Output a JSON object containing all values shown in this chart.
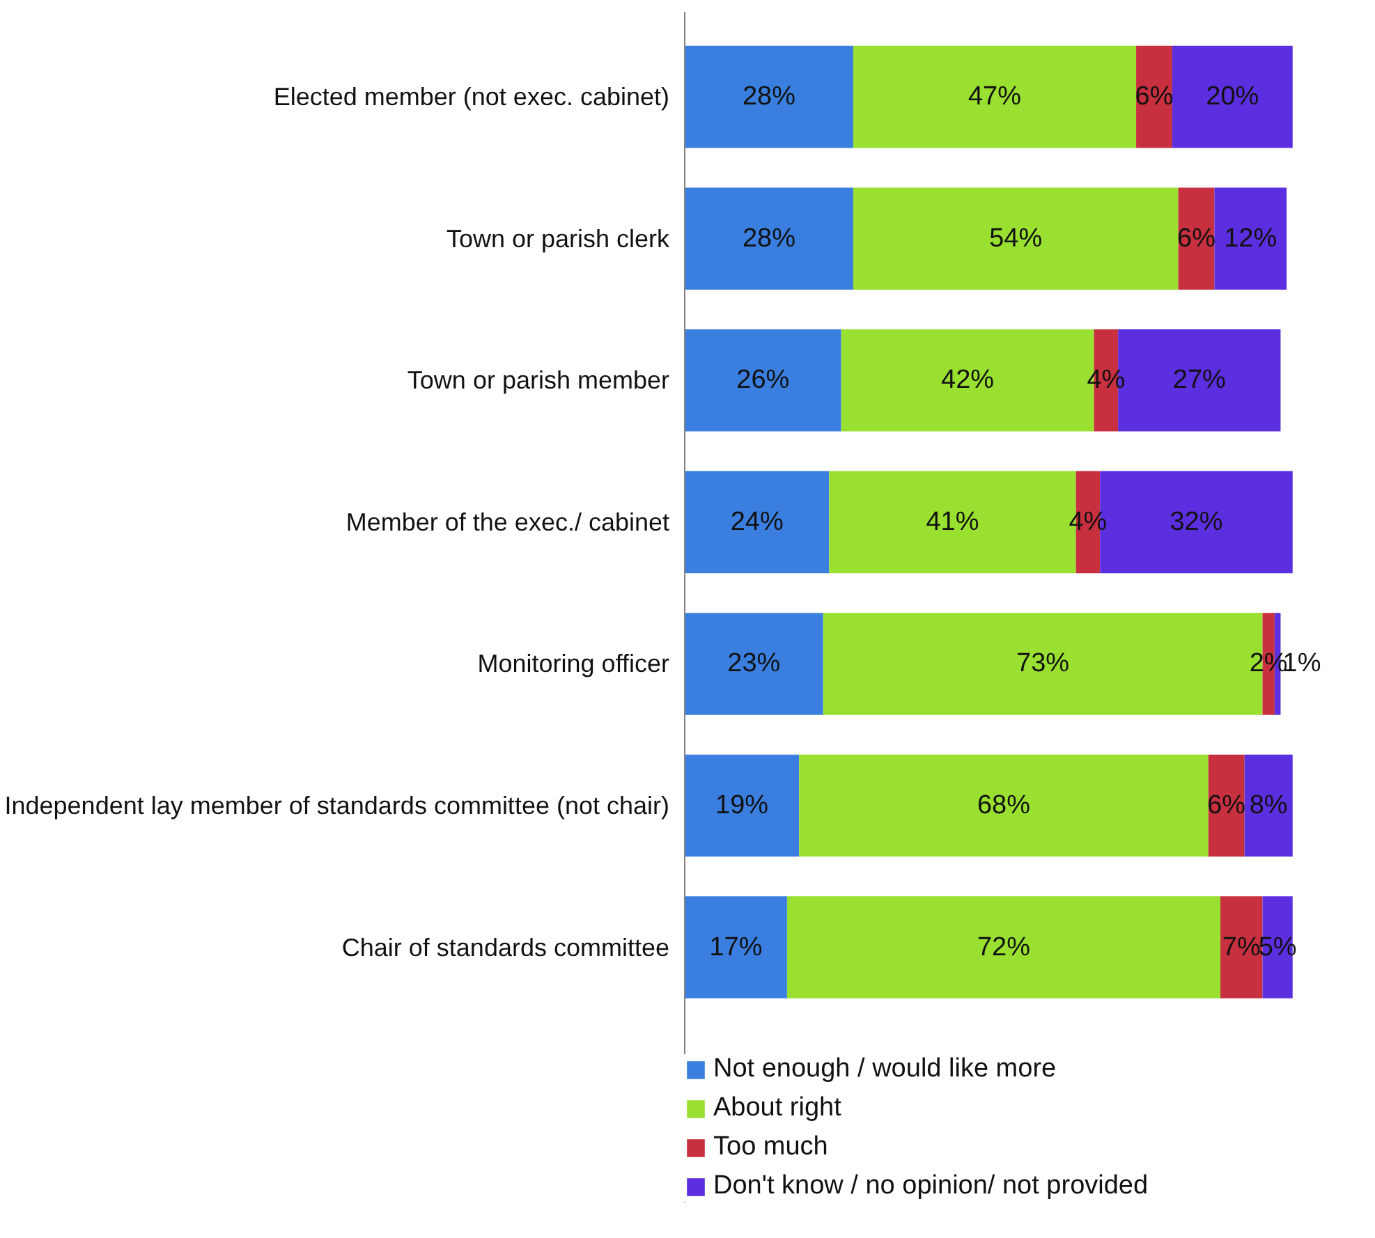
{
  "chart_data": {
    "type": "bar",
    "orientation": "horizontal",
    "stacked": true,
    "grid": false,
    "legend": "bottom",
    "categories": [
      "Elected member (not exec. cabinet)",
      "Town or parish clerk",
      "Town or parish member",
      "Member of the exec./ cabinet",
      "Monitoring officer",
      "Independent lay member of standards committee (not chair)",
      "Chair of standards committee"
    ],
    "series": [
      {
        "name": "Not enough / would like more",
        "color": "#3a7fe0",
        "values": [
          28,
          28,
          26,
          24,
          23,
          19,
          17
        ],
        "value_labels": [
          "28%",
          "28%",
          "26%",
          "24%",
          "23%",
          "19%",
          "17%"
        ]
      },
      {
        "name": "About right",
        "color": "#99e030",
        "values": [
          47,
          54,
          42,
          41,
          73,
          68,
          72
        ],
        "value_labels": [
          "47%",
          "54%",
          "42%",
          "41%",
          "73%",
          "68%",
          "72%"
        ]
      },
      {
        "name": "Too much",
        "color": "#c8303f",
        "values": [
          6,
          6,
          4,
          4,
          2,
          6,
          7
        ],
        "value_labels": [
          "6%",
          "6%",
          "4%",
          "4%",
          "2%",
          "6%",
          "7%"
        ]
      },
      {
        "name": "Don't know / no opinion/ not provided",
        "color": "#5b2fe0",
        "values": [
          20,
          12,
          27,
          32,
          1,
          8,
          5
        ],
        "value_labels": [
          "20%",
          "12%",
          "27%",
          "32%",
          "1%",
          "8%",
          "5%"
        ]
      }
    ]
  }
}
